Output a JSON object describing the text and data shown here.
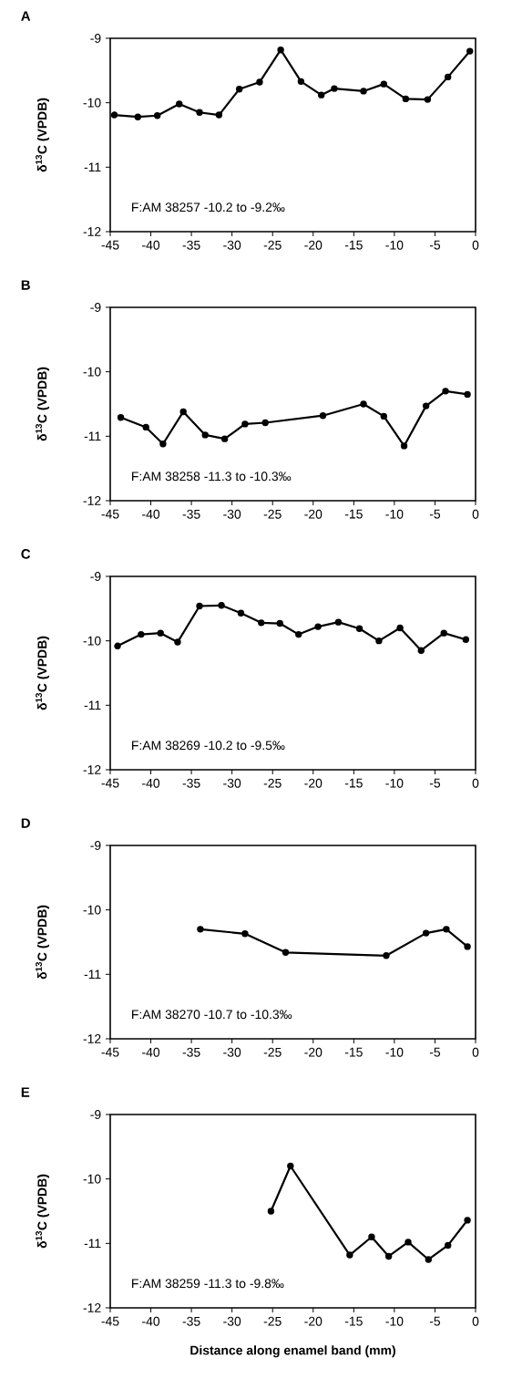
{
  "chart_data": [
    {
      "type": "line",
      "title": "A",
      "ylabel": "δ$^{13}$C (VPDB)",
      "annotations": [
        "F:AM 38257  -10.2 to -9.2‰"
      ],
      "color": "#000000",
      "marker": "circle",
      "line_style": "solid",
      "xlim": [
        -45,
        0
      ],
      "ylim": [
        -12,
        -9
      ],
      "xticks": [
        -45,
        -40,
        -35,
        -30,
        -25,
        -20,
        -15,
        -10,
        -5,
        0
      ],
      "yticks": [
        -12,
        -11,
        -10,
        -9
      ],
      "x": [
        -44.5,
        -41.6,
        -39.2,
        -36.5,
        -34.0,
        -31.6,
        -29.1,
        -26.6,
        -24.0,
        -21.5,
        -19.0,
        -17.4,
        -13.8,
        -11.3,
        -8.6,
        -5.9,
        -3.4,
        -0.7
      ],
      "values": [
        -10.19,
        -10.22,
        -10.2,
        -10.02,
        -10.15,
        -10.19,
        -9.79,
        -9.68,
        -9.18,
        -9.67,
        -9.88,
        -9.78,
        -9.82,
        -9.71,
        -9.94,
        -9.95,
        -9.6,
        -9.2
      ]
    },
    {
      "type": "line",
      "title": "B",
      "ylabel": "δ$^{13}$C (VPDB)",
      "annotations": [
        "F:AM 38258  -11.3 to -10.3‰"
      ],
      "color": "#000000",
      "marker": "circle",
      "line_style": "solid",
      "xlim": [
        -45,
        0
      ],
      "ylim": [
        -12,
        -9
      ],
      "xticks": [
        -45,
        -40,
        -35,
        -30,
        -25,
        -20,
        -15,
        -10,
        -5,
        0
      ],
      "yticks": [
        -12,
        -11,
        -10,
        -9
      ],
      "x": [
        -43.7,
        -40.6,
        -38.5,
        -36.0,
        -33.3,
        -30.9,
        -28.4,
        -25.9,
        -18.8,
        -13.8,
        -11.3,
        -8.8,
        -6.1,
        -3.7,
        -1.0
      ],
      "values": [
        -10.71,
        -10.86,
        -11.12,
        -10.62,
        -10.98,
        -11.04,
        -10.81,
        -10.79,
        -10.68,
        -10.5,
        -10.69,
        -11.15,
        -10.53,
        -10.3,
        -10.35
      ]
    },
    {
      "type": "line",
      "title": "C",
      "ylabel": "δ$^{13}$C (VPDB)",
      "annotations": [
        "F:AM 38269  -10.2 to -9.5‰"
      ],
      "color": "#000000",
      "marker": "circle",
      "line_style": "solid",
      "xlim": [
        -45,
        0
      ],
      "ylim": [
        -12,
        -9
      ],
      "xticks": [
        -45,
        -40,
        -35,
        -30,
        -25,
        -20,
        -15,
        -10,
        -5,
        0
      ],
      "yticks": [
        -12,
        -11,
        -10,
        -9
      ],
      "x": [
        -44.1,
        -41.2,
        -38.8,
        -36.7,
        -34.0,
        -31.3,
        -28.9,
        -26.4,
        -24.1,
        -21.8,
        -19.4,
        -16.9,
        -14.3,
        -11.9,
        -9.3,
        -6.7,
        -3.9,
        -1.2
      ],
      "values": [
        -10.08,
        -9.9,
        -9.88,
        -10.02,
        -9.46,
        -9.45,
        -9.57,
        -9.72,
        -9.73,
        -9.9,
        -9.78,
        -9.71,
        -9.81,
        -10.0,
        -9.8,
        -10.15,
        -9.88,
        -9.98
      ]
    },
    {
      "type": "line",
      "title": "D",
      "ylabel": "δ$^{13}$C (VPDB)",
      "annotations": [
        "F:AM 38270  -10.7 to -10.3‰"
      ],
      "color": "#000000",
      "marker": "circle",
      "line_style": "solid",
      "xlim": [
        -45,
        0
      ],
      "ylim": [
        -12,
        -9
      ],
      "xticks": [
        -45,
        -40,
        -35,
        -30,
        -25,
        -20,
        -15,
        -10,
        -5,
        0
      ],
      "yticks": [
        -12,
        -11,
        -10,
        -9
      ],
      "x": [
        -33.9,
        -28.4,
        -23.4,
        -11.0,
        -6.1,
        -3.6,
        -1.0
      ],
      "values": [
        -10.3,
        -10.37,
        -10.66,
        -10.71,
        -10.36,
        -10.3,
        -10.57
      ]
    },
    {
      "type": "line",
      "title": "E",
      "ylabel": "δ$^{13}$C (VPDB)",
      "xlabel": "Distance along enamel band (mm)",
      "annotations": [
        "F:AM 38259  -11.3 to -9.8‰"
      ],
      "color": "#000000",
      "marker": "circle",
      "line_style": "solid",
      "xlim": [
        -45,
        0
      ],
      "ylim": [
        -12,
        -9
      ],
      "xticks": [
        -45,
        -40,
        -35,
        -30,
        -25,
        -20,
        -15,
        -10,
        -5,
        0
      ],
      "yticks": [
        -12,
        -11,
        -10,
        -9
      ],
      "x": [
        -25.2,
        -22.8,
        -15.5,
        -12.8,
        -10.7,
        -8.3,
        -5.8,
        -3.4,
        -1.0
      ],
      "values": [
        -10.5,
        -9.8,
        -11.18,
        -10.9,
        -11.2,
        -10.98,
        -11.25,
        -11.03,
        -10.64
      ]
    }
  ]
}
